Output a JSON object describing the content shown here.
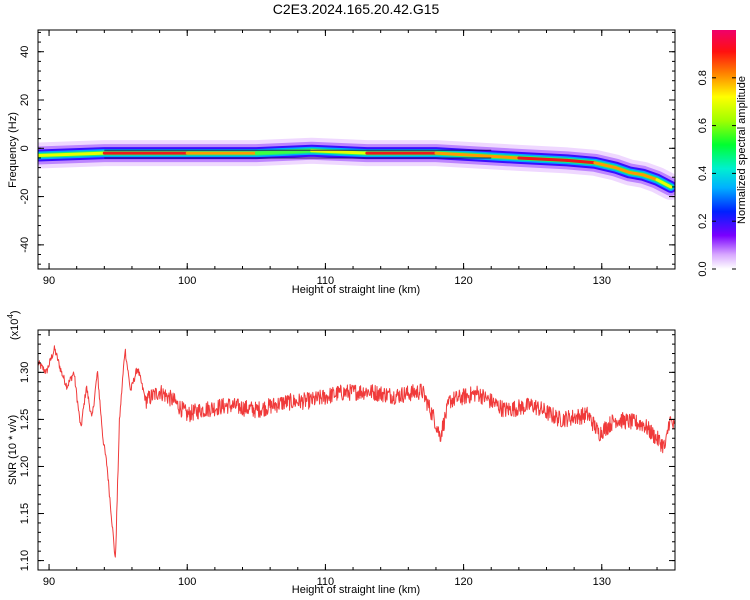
{
  "chart_data": [
    {
      "type": "heatmap",
      "title": "C2E3.2024.165.20.42.G15",
      "xlabel": "Height of straight line (km)",
      "ylabel": "Frequency (Hz)",
      "xlim": [
        89.2,
        135.3
      ],
      "ylim": [
        -50,
        49
      ],
      "x_ticks": [
        90,
        100,
        110,
        120,
        130
      ],
      "y_ticks": [
        -40,
        -20,
        0,
        20,
        40
      ],
      "colorbar": {
        "label": "Normalized spectral amplitude",
        "range": [
          0,
          1
        ],
        "ticks": [
          0.0,
          0.2,
          0.4,
          0.6,
          0.8
        ],
        "tick_labels": [
          "0.0",
          "0.2",
          "0.4",
          "0.6",
          "0.8"
        ]
      },
      "ridge": {
        "x": [
          89.2,
          94,
          100,
          105,
          109,
          113,
          118,
          121,
          124,
          127.5,
          129.5,
          131,
          132,
          133,
          134,
          135
        ],
        "frequency": [
          -3,
          -2,
          -2,
          -2,
          -1,
          -2,
          -2,
          -3,
          -4,
          -5,
          -6,
          -8,
          -10,
          -11,
          -13,
          -16
        ],
        "amplitude": [
          0.3,
          0.92,
          0.95,
          0.55,
          0.45,
          0.9,
          0.88,
          0.6,
          0.9,
          0.88,
          0.85,
          0.8,
          0.8,
          0.8,
          0.7,
          0.6
        ]
      }
    },
    {
      "type": "line",
      "xlabel": "Height of straight line (km)",
      "ylabel": "SNR (10 * v/v)",
      "y_multiplier_label": "(x10",
      "y_multiplier_exp": "4",
      "xlim": [
        89.2,
        135.3
      ],
      "ylim": [
        1.09,
        1.345
      ],
      "x_ticks": [
        90,
        100,
        110,
        120,
        130
      ],
      "y_ticks": [
        1.1,
        1.15,
        1.2,
        1.25,
        1.3
      ],
      "y_tick_labels": [
        "1.10",
        "1.15",
        "1.20",
        "1.25",
        "1.30"
      ],
      "color": "#f03a3a",
      "series": [
        {
          "x": [
            89.2,
            89.8,
            90.4,
            90.9,
            91.3,
            91.8,
            92.3,
            92.7,
            93.1,
            93.5,
            93.9,
            94.2,
            94.5,
            94.8,
            95.1,
            95.5,
            95.9,
            96.4,
            97,
            98,
            99,
            100,
            101,
            103,
            105,
            107,
            109,
            111,
            113,
            115,
            117,
            117.9,
            118.3,
            119,
            121,
            123,
            125,
            127,
            129,
            129.8,
            131,
            133,
            134.6,
            134.9,
            135.3
          ],
          "y": [
            1.31,
            1.3,
            1.325,
            1.3,
            1.285,
            1.3,
            1.24,
            1.285,
            1.25,
            1.3,
            1.23,
            1.2,
            1.15,
            1.1,
            1.25,
            1.325,
            1.28,
            1.305,
            1.27,
            1.28,
            1.27,
            1.255,
            1.26,
            1.265,
            1.26,
            1.268,
            1.27,
            1.278,
            1.28,
            1.275,
            1.28,
            1.25,
            1.232,
            1.27,
            1.278,
            1.26,
            1.265,
            1.25,
            1.255,
            1.235,
            1.25,
            1.245,
            1.22,
            1.25,
            1.24
          ]
        }
      ]
    }
  ]
}
